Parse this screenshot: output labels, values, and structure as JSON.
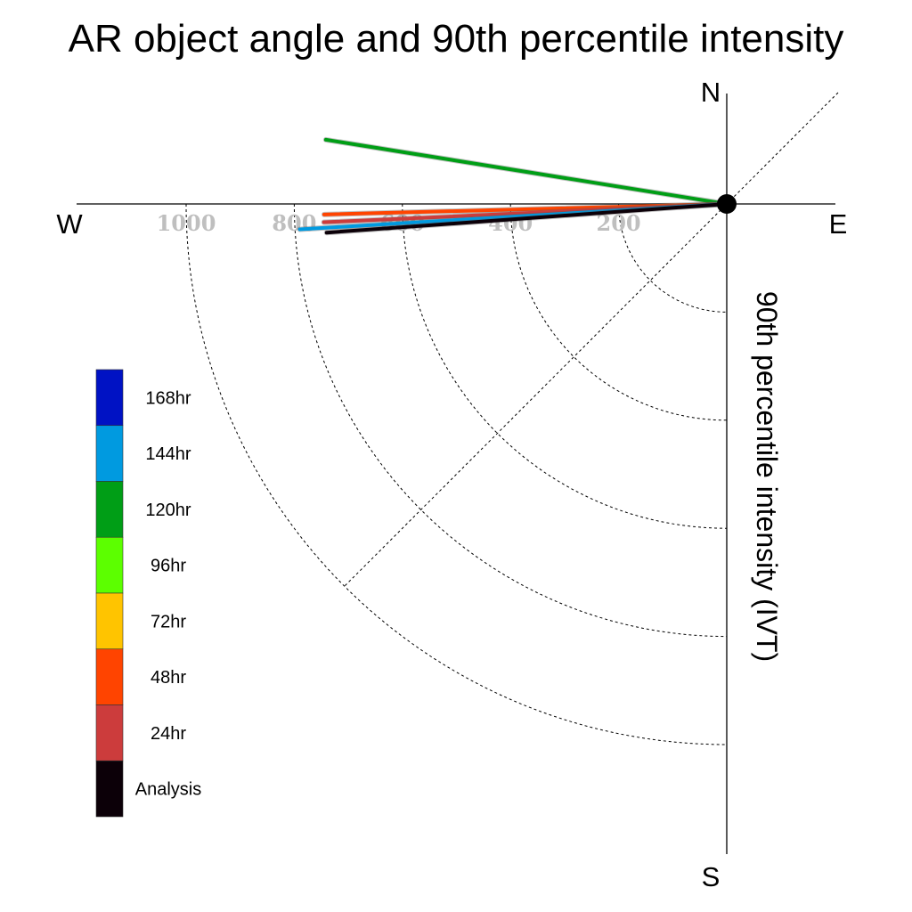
{
  "chart_data": {
    "type": "polar-vector",
    "title": "AR object angle and 90th percentile intensity",
    "ylabel": "90th percentile intensity (IVT)",
    "compass": {
      "north": "N",
      "south": "S",
      "east": "E",
      "west": "W"
    },
    "radial_ticks": [
      200,
      400,
      600,
      800,
      1000
    ],
    "radial_max": 1200,
    "grid": true,
    "legend_position": "left",
    "colors": {
      "168hr": "#0012c4",
      "144hr": "#009ae0",
      "120hr": "#009e16",
      "96hr": "#5cff00",
      "72hr": "#ffc400",
      "48hr": "#ff4400",
      "24hr": "#cc3c3c",
      "Analysis": "#0c0008"
    },
    "legend": [
      "168hr",
      "144hr",
      "120hr",
      "96hr",
      "72hr",
      "48hr",
      "24hr",
      "Analysis"
    ],
    "series": [
      {
        "name": "120hr",
        "direction_deg": 279.1,
        "intensity": 751
      },
      {
        "name": "48hr",
        "direction_deg": 91.5,
        "intensity": 745
      },
      {
        "name": "24hr",
        "direction_deg": 92.6,
        "intensity": 746
      },
      {
        "name": "144hr",
        "direction_deg": 93.4,
        "intensity": 791
      },
      {
        "name": "Analysis",
        "direction_deg": 94.1,
        "intensity": 742
      }
    ]
  }
}
